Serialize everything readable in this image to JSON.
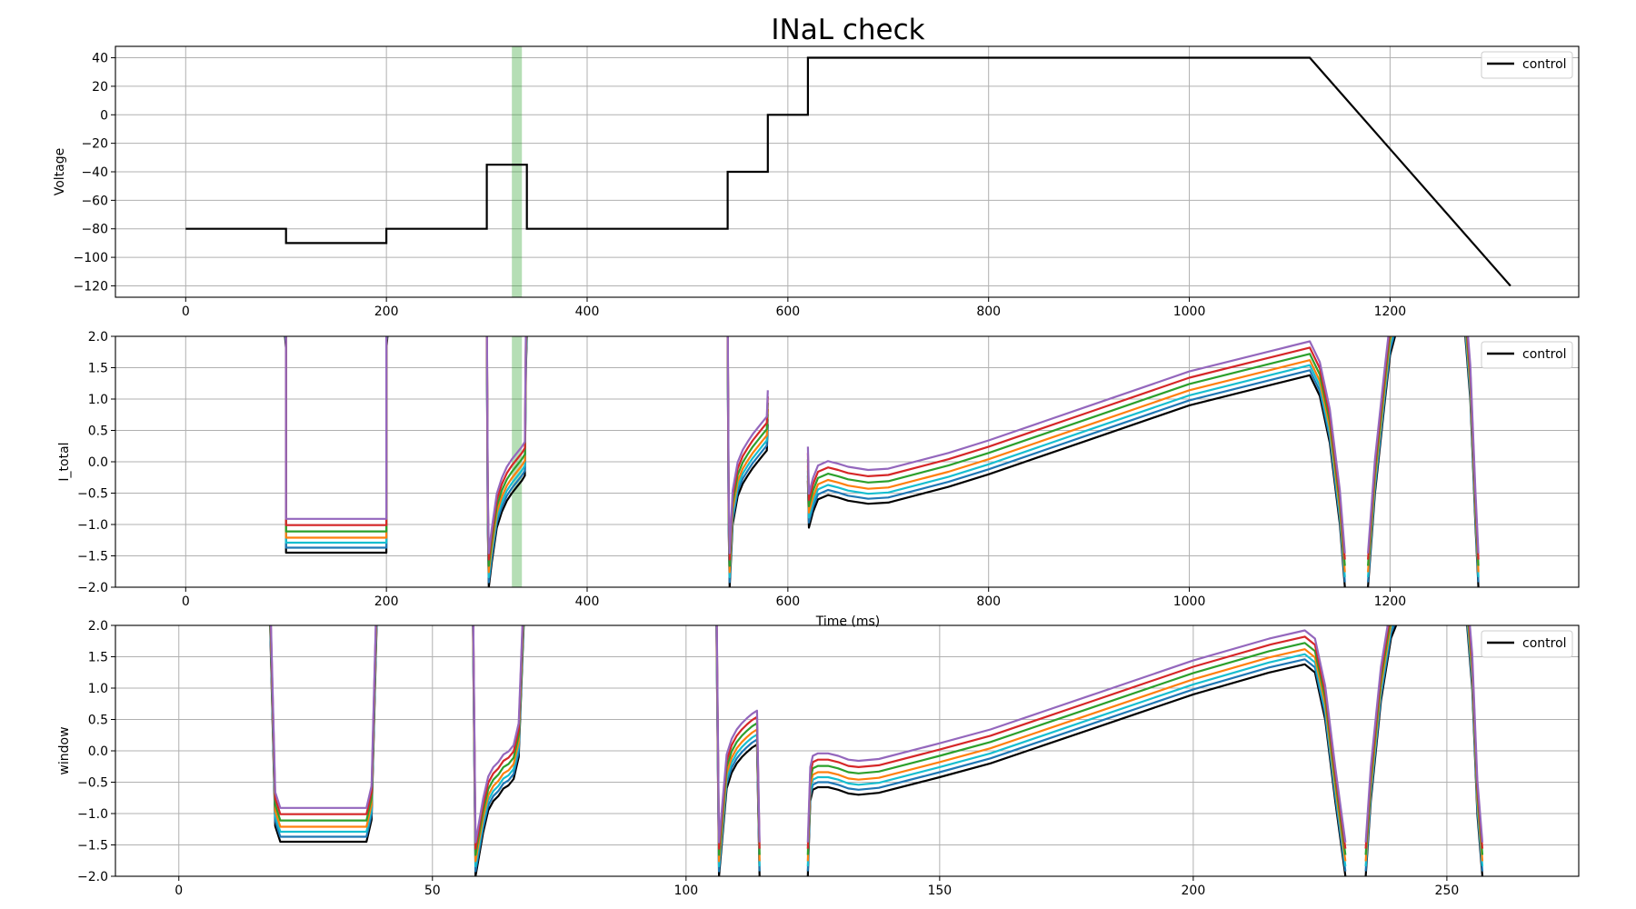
{
  "figure": {
    "title": "INaL check"
  },
  "colors": {
    "control": "#000000",
    "sweeps": [
      "#1f77b4",
      "#17becf",
      "#ff7f0e",
      "#2ca02c",
      "#d62728",
      "#9467bd"
    ],
    "window_band": "#2ca02c"
  },
  "chart_data": [
    {
      "type": "line",
      "title": "",
      "xlabel": "",
      "ylabel": "Voltage",
      "xlim": [
        -70,
        1388
      ],
      "ylim": [
        -128,
        48
      ],
      "xticks": [
        0,
        200,
        400,
        600,
        800,
        1000,
        1200
      ],
      "yticks": [
        -120,
        -100,
        -80,
        -60,
        -40,
        -20,
        0,
        20,
        40
      ],
      "grid": true,
      "legend": {
        "entries": [
          "control"
        ],
        "placement": "top-right"
      },
      "shaded_span": {
        "x0": 325,
        "x1": 335
      },
      "series": [
        {
          "name": "control",
          "x": [
            0,
            100,
            100,
            200,
            200,
            300,
            300,
            340,
            340,
            540,
            540,
            580,
            580,
            620,
            620,
            1120,
            1320
          ],
          "y": [
            -80,
            -80,
            -90,
            -90,
            -80,
            -80,
            -35,
            -35,
            -80,
            -80,
            -40,
            -40,
            0,
            0,
            40,
            40,
            -120
          ]
        }
      ]
    },
    {
      "type": "line",
      "title": "",
      "xlabel": "Time (ms)",
      "ylabel": "I_total",
      "xlim": [
        -70,
        1388
      ],
      "ylim": [
        -2.0,
        2.0
      ],
      "xticks": [
        0,
        200,
        400,
        600,
        800,
        1000,
        1200
      ],
      "yticks": [
        -2.0,
        -1.5,
        -1.0,
        -0.5,
        0.0,
        0.5,
        1.0,
        1.5,
        2.0
      ],
      "grid": true,
      "legend": {
        "entries": [
          "control"
        ],
        "placement": "top-right"
      },
      "shaded_span": {
        "x0": 325,
        "x1": 335
      },
      "series_offsets": [
        0.08,
        0.16,
        0.24,
        0.34,
        0.44,
        0.54
      ],
      "series": [
        {
          "name": "control",
          "segments": [
            {
              "x": [
                99,
                100,
                100,
                200,
                200,
                201
              ],
              "y": [
                2.0,
                1.8,
                -1.45,
                -1.45,
                1.8,
                2.0
              ]
            },
            {
              "x": [
                300,
                301,
                302,
                305,
                310,
                315,
                320,
                325,
                330,
                335,
                338,
                339,
                340
              ],
              "y": [
                2.0,
                -1.0,
                -2.0,
                -1.6,
                -1.05,
                -0.8,
                -0.62,
                -0.5,
                -0.4,
                -0.3,
                -0.22,
                1.5,
                2.0
              ]
            },
            {
              "x": [
                540,
                541,
                542,
                545,
                550,
                555,
                560,
                565,
                570,
                575,
                579,
                580
              ],
              "y": [
                2.0,
                -1.0,
                -2.0,
                -1.0,
                -0.55,
                -0.35,
                -0.22,
                -0.1,
                0.0,
                0.1,
                0.18,
                0.6
              ]
            },
            {
              "x": [
                620,
                621,
                625,
                630,
                640,
                650,
                660,
                680,
                700,
                760,
                800,
                900,
                1000,
                1100,
                1120,
                1130,
                1140,
                1150,
                1155
              ],
              "y": [
                -0.3,
                -1.05,
                -0.8,
                -0.6,
                -0.53,
                -0.57,
                -0.62,
                -0.67,
                -0.65,
                -0.4,
                -0.2,
                0.35,
                0.9,
                1.3,
                1.38,
                1.05,
                0.3,
                -1.0,
                -2.0
              ]
            },
            {
              "x": [
                1178,
                1185,
                1195,
                1200,
                1205
              ],
              "y": [
                -2.0,
                -0.5,
                1.0,
                1.7,
                2.0
              ]
            },
            {
              "x": [
                1275,
                1280,
                1285,
                1288
              ],
              "y": [
                2.0,
                1.0,
                -1.0,
                -2.0
              ]
            }
          ]
        }
      ]
    },
    {
      "type": "line",
      "title": "",
      "xlabel": "",
      "ylabel": "window",
      "xlim": [
        -12.5,
        276
      ],
      "ylim": [
        -2.0,
        2.0
      ],
      "xticks": [
        0,
        50,
        100,
        150,
        200,
        250
      ],
      "yticks": [
        -2.0,
        -1.5,
        -1.0,
        -0.5,
        0.0,
        0.5,
        1.0,
        1.5,
        2.0
      ],
      "grid": true,
      "legend": {
        "entries": [
          "control"
        ],
        "placement": "top-right"
      },
      "series_offsets": [
        0.08,
        0.16,
        0.24,
        0.34,
        0.44,
        0.54
      ],
      "series": [
        {
          "name": "control",
          "segments": [
            {
              "x": [
                18,
                19,
                20,
                37,
                38,
                39
              ],
              "y": [
                2.0,
                -1.2,
                -1.45,
                -1.45,
                -1.1,
                2.0
              ]
            },
            {
              "x": [
                58,
                58.5,
                60,
                61,
                62,
                63,
                64,
                65,
                66,
                67,
                68
              ],
              "y": [
                2.0,
                -2.0,
                -1.3,
                -0.95,
                -0.8,
                -0.72,
                -0.6,
                -0.55,
                -0.45,
                -0.1,
                2.0
              ]
            },
            {
              "x": [
                106,
                106.5,
                108,
                109,
                110,
                111,
                112,
                113,
                114,
                114.5
              ],
              "y": [
                2.0,
                -2.0,
                -0.6,
                -0.35,
                -0.2,
                -0.1,
                -0.02,
                0.05,
                0.1,
                -2.0
              ]
            },
            {
              "x": [
                124,
                124.5,
                125,
                126,
                128,
                130,
                132,
                134,
                138,
                150,
                160,
                180,
                200,
                215,
                222,
                224,
                226,
                228,
                230
              ],
              "y": [
                -2.0,
                -0.8,
                -0.62,
                -0.58,
                -0.58,
                -0.62,
                -0.68,
                -0.7,
                -0.67,
                -0.42,
                -0.2,
                0.35,
                0.9,
                1.25,
                1.38,
                1.25,
                0.5,
                -0.8,
                -2.0
              ]
            },
            {
              "x": [
                234,
                235,
                237,
                239,
                240
              ],
              "y": [
                -2.0,
                -0.8,
                0.8,
                1.8,
                2.0
              ]
            },
            {
              "x": [
                254,
                255,
                256,
                257
              ],
              "y": [
                2.0,
                1.0,
                -1.0,
                -2.0
              ]
            }
          ]
        }
      ]
    }
  ]
}
